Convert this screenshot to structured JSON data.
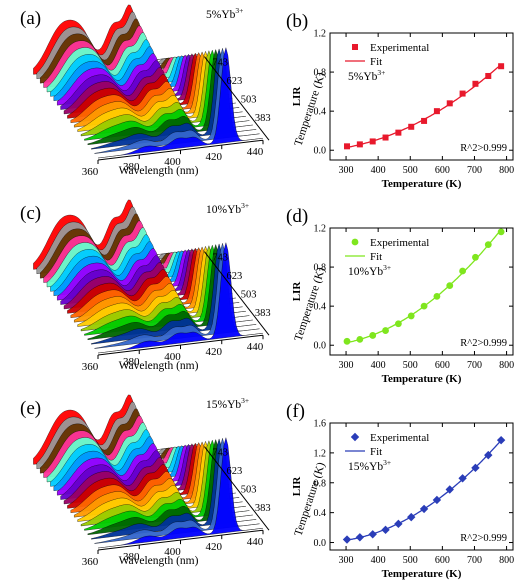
{
  "chart_data": [
    {
      "type": "line",
      "panel_label": "(a)",
      "annotation": "5%Yb",
      "annotation_sup": "3+",
      "xlabel": "Wavelength (nm)",
      "x_ticks": [
        "360",
        "380",
        "400",
        "420",
        "440"
      ],
      "depth_label": "Temperature (K)",
      "depth_ticks": [
        "383",
        "503",
        "623",
        "743"
      ],
      "series_colors": [
        "#0000ff",
        "#3366cc",
        "#003399",
        "#006600",
        "#00cc00",
        "#99cc00",
        "#ffcc00",
        "#ff9900",
        "#ff6600",
        "#cc0000",
        "#990066",
        "#6600cc",
        "#9900ff",
        "#0099ff",
        "#00ccff",
        "#66ffcc",
        "#ff3399",
        "#663300",
        "#999999",
        "#ff0000"
      ]
    },
    {
      "type": "scatter",
      "panel_label": "(b)",
      "title": "",
      "xlabel": "Temperature (K)",
      "ylabel": "LIR",
      "annotation": "5%Yb",
      "annotation_sup": "3+",
      "fit_note": "R^2>0.999",
      "legend": [
        "Experimental",
        "Fit"
      ],
      "marker": "square",
      "color": "#e8192c",
      "xlim": [
        250,
        820
      ],
      "ylim": [
        -0.1,
        1.2
      ],
      "x_ticks": [
        300,
        400,
        500,
        600,
        700,
        800
      ],
      "y_ticks": [
        0.0,
        0.4,
        0.8,
        1.2
      ],
      "y_tick_labels": [
        "0.0",
        "0.4",
        "0.8",
        "1.2"
      ],
      "x": [
        303,
        343,
        383,
        423,
        463,
        503,
        543,
        583,
        623,
        663,
        703,
        743,
        783
      ],
      "y": [
        0.04,
        0.06,
        0.09,
        0.13,
        0.18,
        0.24,
        0.3,
        0.4,
        0.48,
        0.58,
        0.68,
        0.76,
        0.86
      ]
    },
    {
      "type": "line",
      "panel_label": "(c)",
      "annotation": "10%Yb",
      "annotation_sup": "3+",
      "xlabel": "Wavelength (nm)",
      "x_ticks": [
        "360",
        "380",
        "400",
        "420",
        "440"
      ],
      "depth_label": "Temperature (K)",
      "depth_ticks": [
        "383",
        "503",
        "623",
        "743"
      ],
      "series_colors": [
        "#0000ff",
        "#3366cc",
        "#003399",
        "#006600",
        "#00cc00",
        "#99cc00",
        "#ffcc00",
        "#ff9900",
        "#ff6600",
        "#cc0000",
        "#990066",
        "#6600cc",
        "#9900ff",
        "#0099ff",
        "#00ccff",
        "#66ffcc",
        "#ff3399",
        "#663300",
        "#999999",
        "#ff0000"
      ]
    },
    {
      "type": "scatter",
      "panel_label": "(d)",
      "title": "",
      "xlabel": "Temperature (K)",
      "ylabel": "LIR",
      "annotation": "10%Yb",
      "annotation_sup": "3+",
      "fit_note": "R^2>0.999",
      "legend": [
        "Experimental",
        "Fit"
      ],
      "marker": "circle",
      "color": "#7fe61e",
      "xlim": [
        250,
        820
      ],
      "ylim": [
        -0.1,
        1.2
      ],
      "x_ticks": [
        300,
        400,
        500,
        600,
        700,
        800
      ],
      "y_ticks": [
        0.0,
        0.4,
        0.8,
        1.2
      ],
      "y_tick_labels": [
        "0.0",
        "0.4",
        "0.8",
        "1.2"
      ],
      "x": [
        303,
        343,
        383,
        423,
        463,
        503,
        543,
        583,
        623,
        663,
        703,
        743,
        783
      ],
      "y": [
        0.04,
        0.06,
        0.1,
        0.15,
        0.22,
        0.3,
        0.4,
        0.5,
        0.61,
        0.76,
        0.9,
        1.03,
        1.16
      ]
    },
    {
      "type": "line",
      "panel_label": "(e)",
      "annotation": "15%Yb",
      "annotation_sup": "3+",
      "xlabel": "Wavelength (nm)",
      "x_ticks": [
        "360",
        "380",
        "400",
        "420",
        "440"
      ],
      "depth_label": "Temperature (K)",
      "depth_ticks": [
        "383",
        "503",
        "623",
        "743"
      ],
      "series_colors": [
        "#0000ff",
        "#3366cc",
        "#003399",
        "#006600",
        "#00cc00",
        "#99cc00",
        "#ffcc00",
        "#ff9900",
        "#ff6600",
        "#cc0000",
        "#990066",
        "#6600cc",
        "#9900ff",
        "#0099ff",
        "#00ccff",
        "#66ffcc",
        "#ff3399",
        "#663300",
        "#999999",
        "#ff0000"
      ]
    },
    {
      "type": "scatter",
      "panel_label": "(f)",
      "title": "",
      "xlabel": "Temperature (K)",
      "ylabel": "LIR",
      "annotation": "15%Yb",
      "annotation_sup": "3+",
      "fit_note": "R^2>0.999",
      "legend": [
        "Experimental",
        "Fit"
      ],
      "marker": "diamond",
      "color": "#2a3db8",
      "xlim": [
        250,
        820
      ],
      "ylim": [
        -0.1,
        1.6
      ],
      "x_ticks": [
        300,
        400,
        500,
        600,
        700,
        800
      ],
      "y_ticks": [
        0.0,
        0.4,
        0.8,
        1.2,
        1.6
      ],
      "y_tick_labels": [
        "0.0",
        "0.4",
        "0.8",
        "1.2",
        "1.6"
      ],
      "x": [
        303,
        343,
        383,
        423,
        463,
        503,
        543,
        583,
        623,
        663,
        703,
        743,
        783
      ],
      "y": [
        0.04,
        0.07,
        0.11,
        0.17,
        0.25,
        0.34,
        0.45,
        0.57,
        0.71,
        0.86,
        1.0,
        1.17,
        1.37
      ]
    }
  ]
}
